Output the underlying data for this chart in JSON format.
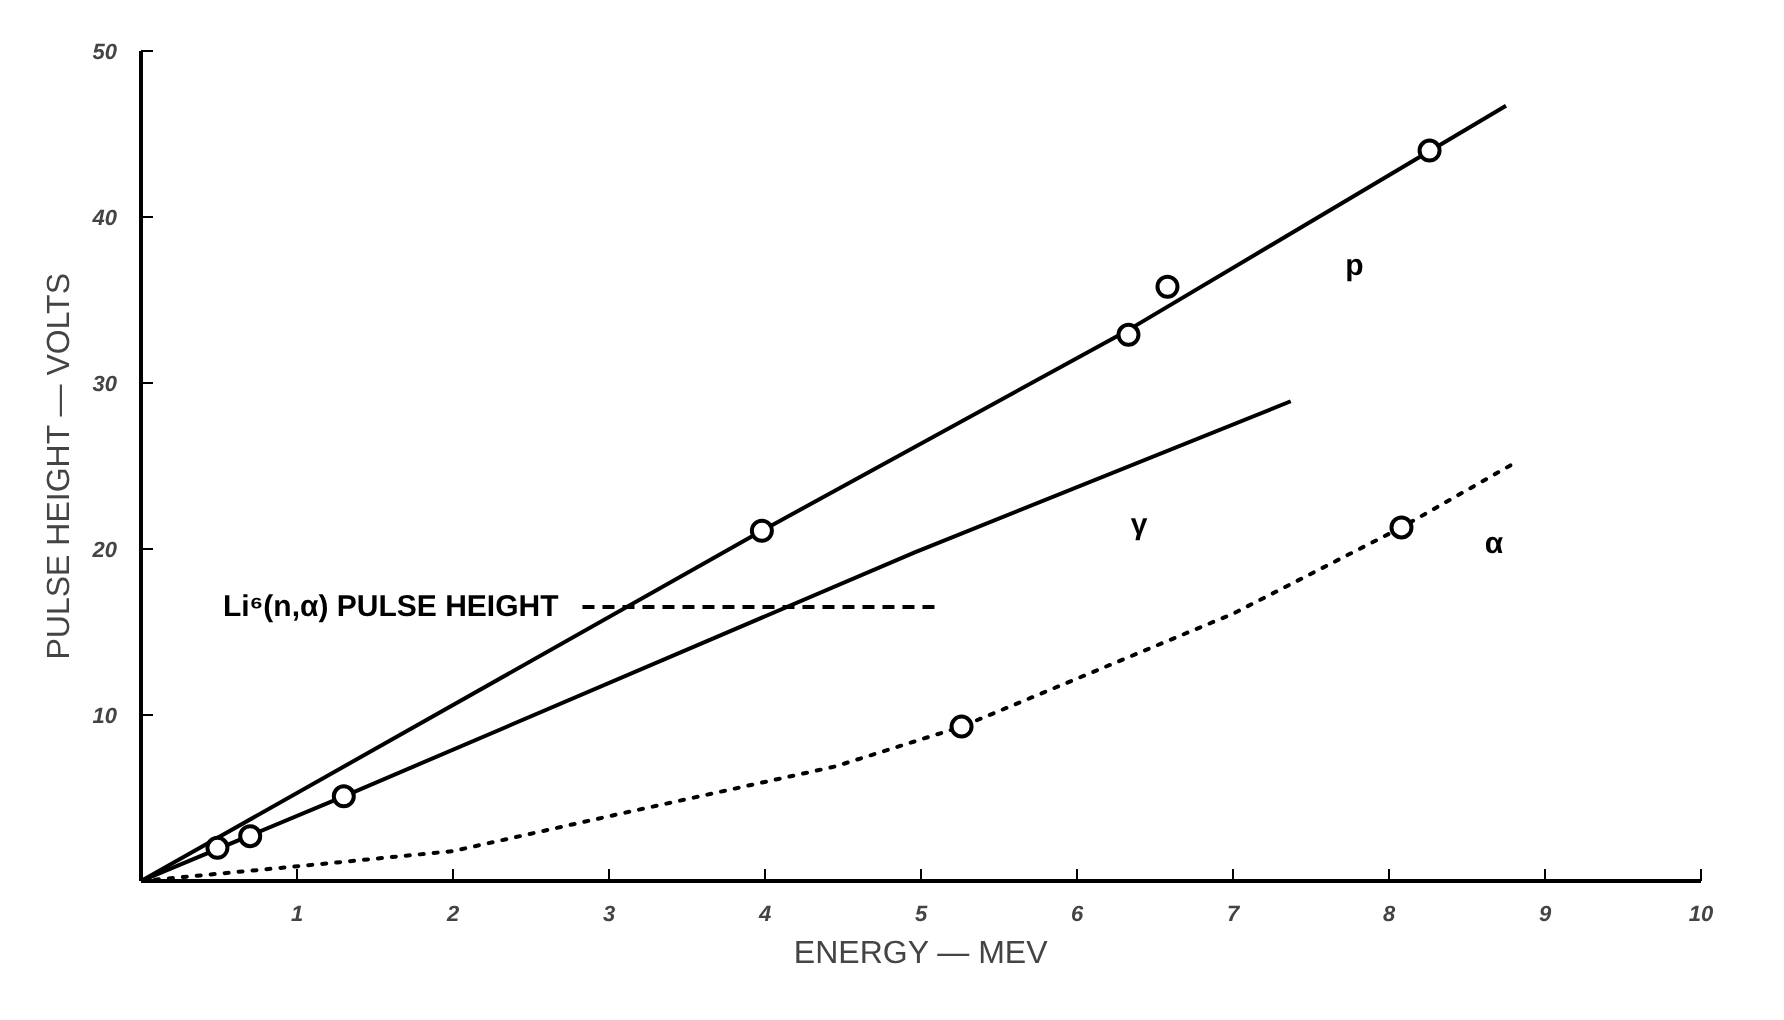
{
  "chart_data": {
    "type": "line",
    "xlabel": "ENERGY — MEV",
    "ylabel": "PULSE HEIGHT — VOLTS",
    "xlim": [
      0,
      10
    ],
    "ylim": [
      0,
      50
    ],
    "xticks": [
      1,
      2,
      3,
      4,
      5,
      6,
      7,
      8,
      9,
      10
    ],
    "yticks": [
      10,
      20,
      30,
      40,
      50
    ],
    "grid": false,
    "series": [
      {
        "name": "p",
        "color": "#000000",
        "line_style": "solid",
        "marker": "none",
        "x": [
          0,
          3.98,
          6.33,
          8.75
        ],
        "values": [
          0,
          21.1,
          33.2,
          46.7
        ]
      },
      {
        "name": "γ",
        "color": "#000000",
        "line_style": "solid",
        "marker": "none",
        "x": [
          0,
          1.3,
          4.96,
          7.37
        ],
        "values": [
          0,
          5.1,
          19.8,
          28.9
        ]
      },
      {
        "name": "α",
        "color": "#000000",
        "line_style": "dotted",
        "marker": "none",
        "x": [
          0,
          1.02,
          2,
          3,
          4.45,
          5.26,
          7,
          8.08,
          8.79
        ],
        "values": [
          0,
          0.9,
          1.8,
          3.9,
          6.9,
          9.3,
          16.1,
          21.3,
          25.1
        ]
      },
      {
        "name": "Li⁶(n,α) PULSE HEIGHT",
        "color": "#000000",
        "line_style": "dashed",
        "marker": "none",
        "x": [
          2.83,
          5.1
        ],
        "values": [
          16.5,
          16.5
        ]
      },
      {
        "type": "scatter",
        "color": "#000000",
        "marker": "circle",
        "x": [
          0.49,
          0.7,
          1.3,
          3.98,
          6.33,
          6.58,
          8.26,
          5.26,
          8.08
        ],
        "values": [
          2.0,
          2.7,
          5.1,
          21.1,
          32.9,
          35.8,
          44.0,
          9.3,
          21.3
        ]
      }
    ]
  }
}
